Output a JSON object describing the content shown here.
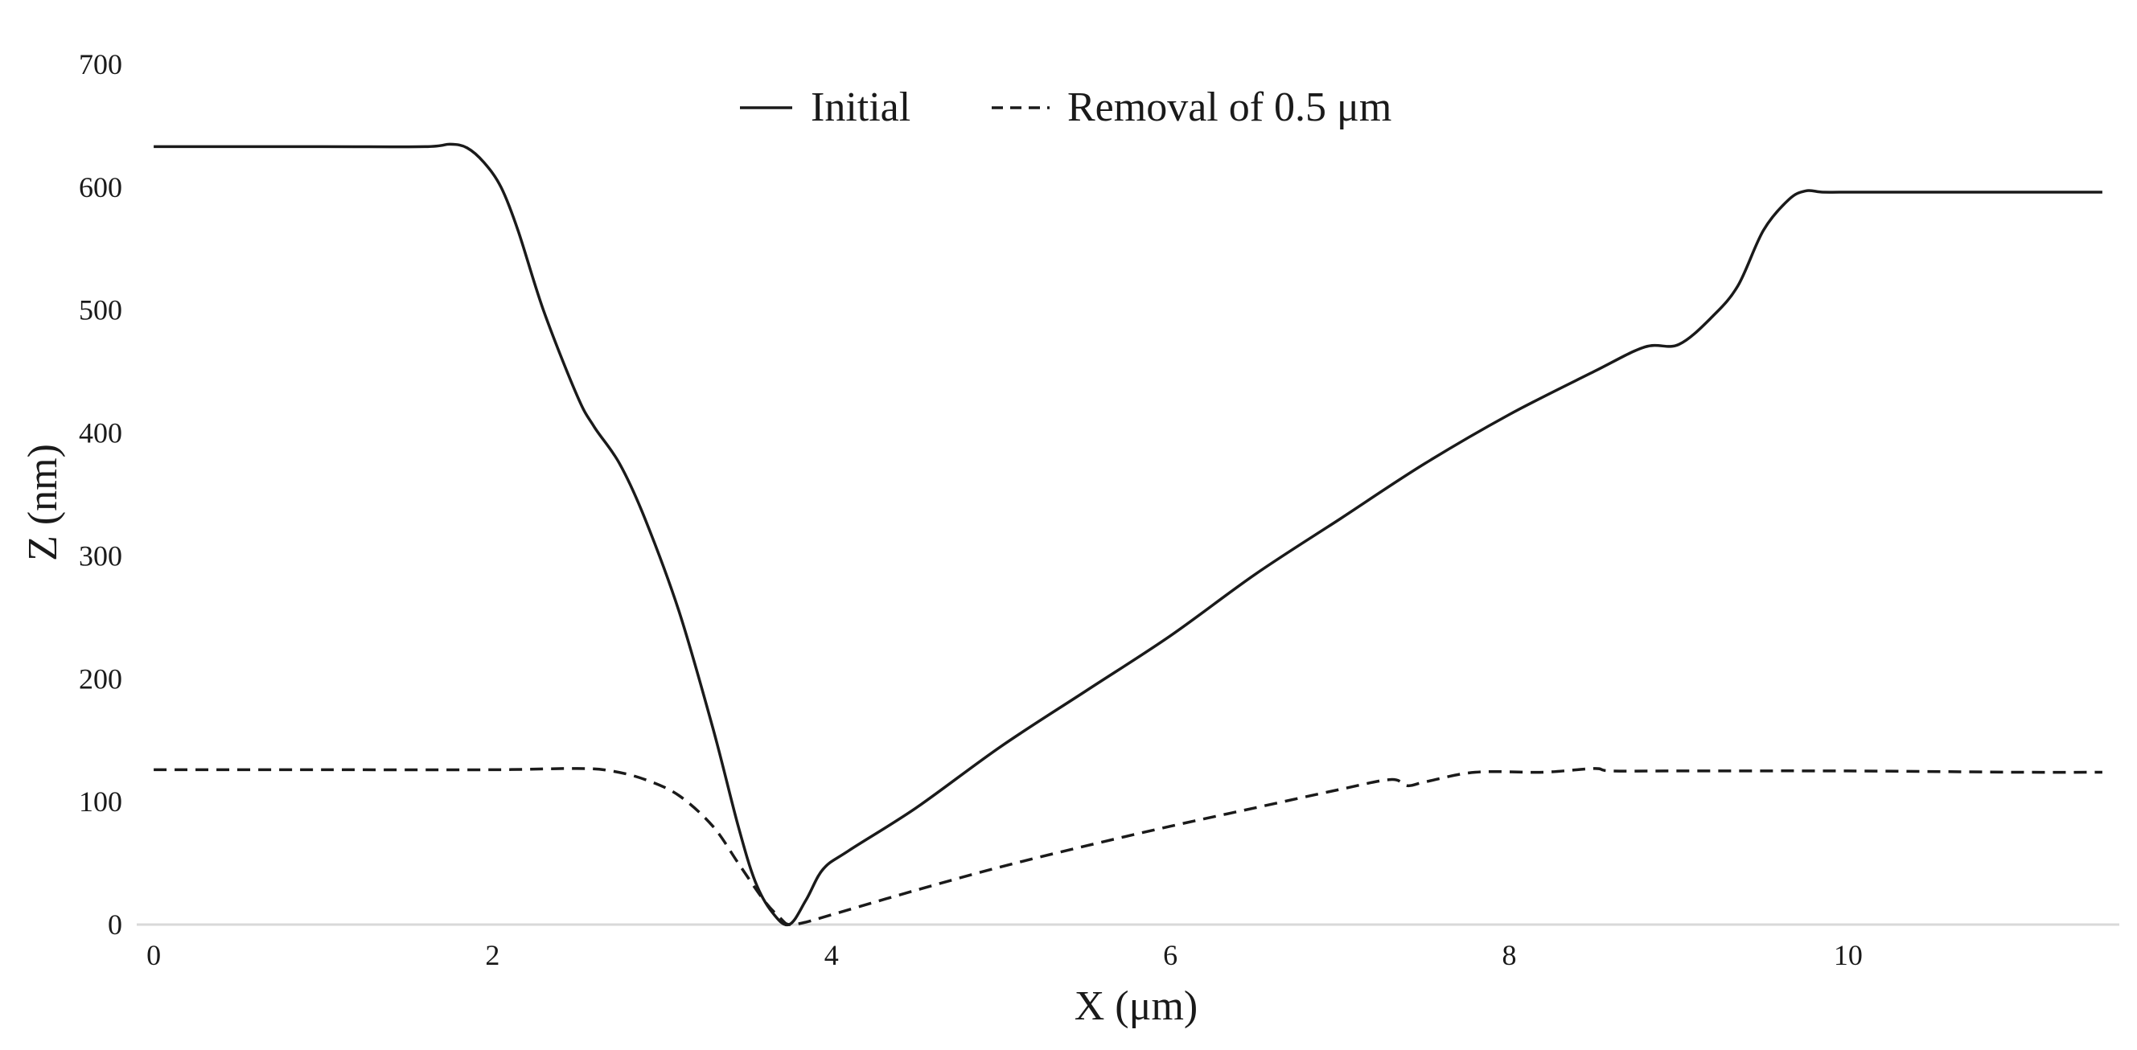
{
  "chart_data": {
    "type": "line",
    "xlabel": "X (μm)",
    "ylabel": "Z (nm)",
    "xlim": [
      -0.1,
      11.6
    ],
    "ylim": [
      0,
      700
    ],
    "x_ticks": [
      {
        "value": 0,
        "label": "0"
      },
      {
        "value": 2,
        "label": "2"
      },
      {
        "value": 4,
        "label": "4"
      },
      {
        "value": 6,
        "label": "6"
      },
      {
        "value": 8,
        "label": "8"
      },
      {
        "value": 10,
        "label": "10"
      }
    ],
    "y_ticks": [
      {
        "value": 0,
        "label": "0"
      },
      {
        "value": 100,
        "label": "100"
      },
      {
        "value": 200,
        "label": "200"
      },
      {
        "value": 300,
        "label": "300"
      },
      {
        "value": 400,
        "label": "400"
      },
      {
        "value": 500,
        "label": "500"
      },
      {
        "value": 600,
        "label": "600"
      },
      {
        "value": 700,
        "label": "700"
      }
    ],
    "grid": false,
    "legend_position": "top-center",
    "series": [
      {
        "name": "Initial",
        "style": "solid",
        "color": "#1a1a1a",
        "points": [
          [
            0,
            633
          ],
          [
            1.0,
            633
          ],
          [
            1.6,
            633
          ],
          [
            1.75,
            635
          ],
          [
            1.85,
            632
          ],
          [
            1.95,
            620
          ],
          [
            2.05,
            600
          ],
          [
            2.15,
            565
          ],
          [
            2.3,
            500
          ],
          [
            2.5,
            430
          ],
          [
            2.6,
            405
          ],
          [
            2.75,
            375
          ],
          [
            2.9,
            330
          ],
          [
            3.1,
            255
          ],
          [
            3.3,
            160
          ],
          [
            3.45,
            80
          ],
          [
            3.55,
            35
          ],
          [
            3.65,
            10
          ],
          [
            3.75,
            0
          ],
          [
            3.85,
            20
          ],
          [
            3.95,
            45
          ],
          [
            4.1,
            60
          ],
          [
            4.5,
            95
          ],
          [
            5.0,
            145
          ],
          [
            5.5,
            190
          ],
          [
            6.0,
            235
          ],
          [
            6.5,
            285
          ],
          [
            7.0,
            330
          ],
          [
            7.5,
            375
          ],
          [
            8.0,
            415
          ],
          [
            8.5,
            450
          ],
          [
            8.8,
            470
          ],
          [
            9.0,
            472
          ],
          [
            9.2,
            495
          ],
          [
            9.35,
            520
          ],
          [
            9.5,
            565
          ],
          [
            9.65,
            590
          ],
          [
            9.75,
            597
          ],
          [
            9.85,
            596
          ],
          [
            10.0,
            596
          ],
          [
            10.5,
            596
          ],
          [
            11.5,
            596
          ]
        ]
      },
      {
        "name": "Removal of 0.5 μm",
        "style": "dashed",
        "color": "#1a1a1a",
        "points": [
          [
            0,
            126
          ],
          [
            1.0,
            126
          ],
          [
            2.0,
            126
          ],
          [
            2.5,
            127
          ],
          [
            2.7,
            125
          ],
          [
            2.9,
            118
          ],
          [
            3.1,
            105
          ],
          [
            3.3,
            80
          ],
          [
            3.45,
            50
          ],
          [
            3.6,
            20
          ],
          [
            3.7,
            5
          ],
          [
            3.75,
            0
          ],
          [
            3.85,
            2
          ],
          [
            4.0,
            8
          ],
          [
            4.5,
            28
          ],
          [
            5.0,
            47
          ],
          [
            5.5,
            64
          ],
          [
            6.0,
            80
          ],
          [
            6.5,
            95
          ],
          [
            7.0,
            110
          ],
          [
            7.3,
            118
          ],
          [
            7.4,
            113
          ],
          [
            7.5,
            116
          ],
          [
            7.8,
            124
          ],
          [
            8.2,
            124
          ],
          [
            8.5,
            127
          ],
          [
            8.6,
            125
          ],
          [
            9.0,
            125
          ],
          [
            10.0,
            125
          ],
          [
            11.0,
            124
          ],
          [
            11.5,
            124
          ]
        ]
      }
    ]
  }
}
